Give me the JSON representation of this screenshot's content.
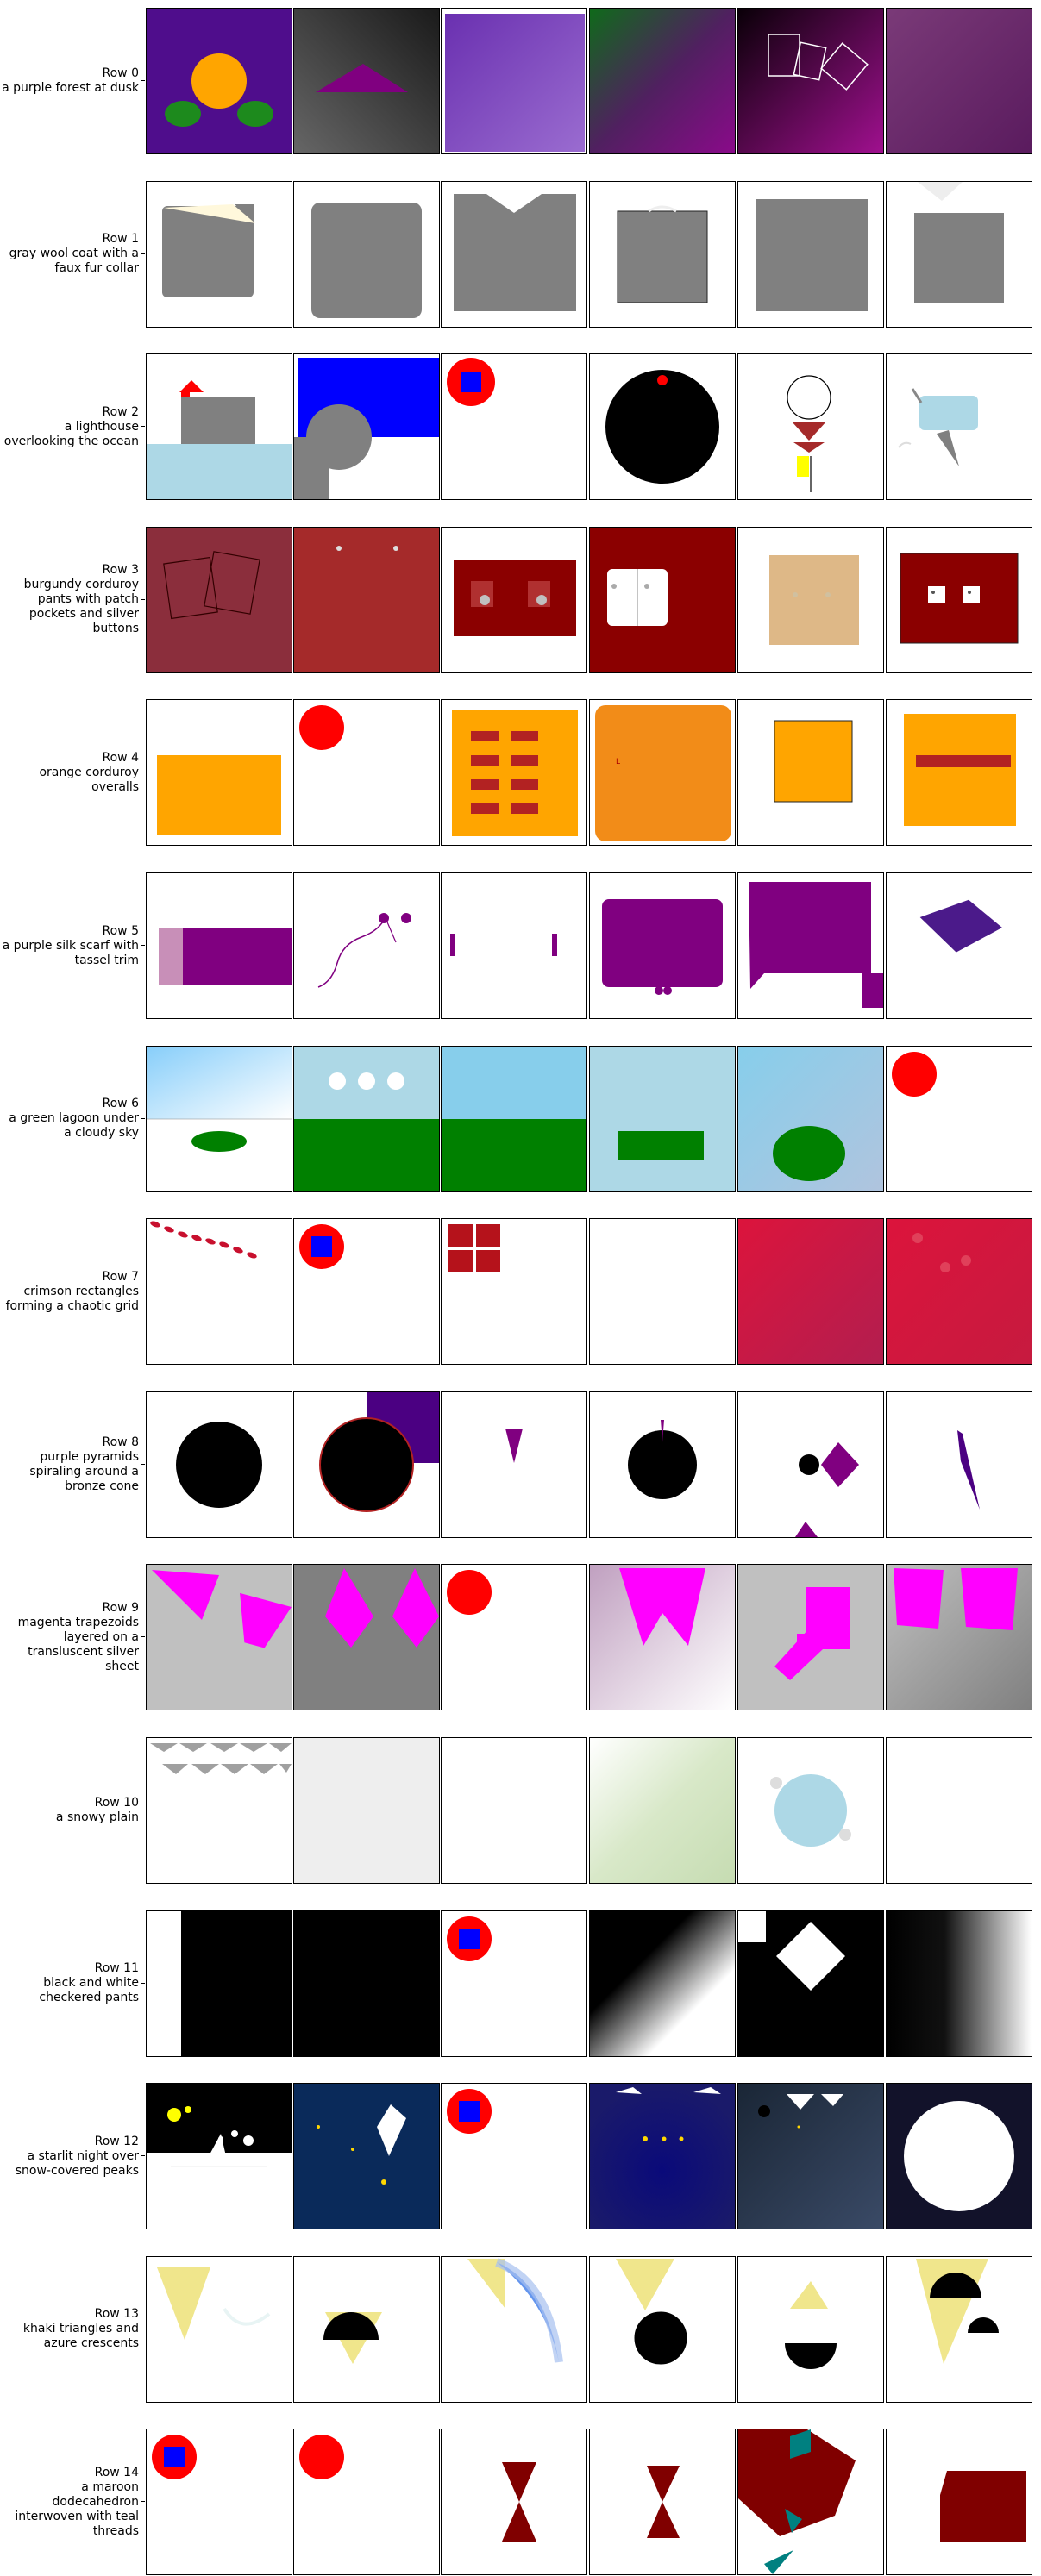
{
  "rows": [
    {
      "index_label": "Row 0",
      "prompt": "a purple forest at dusk"
    },
    {
      "index_label": "Row 1",
      "prompt": "gray wool coat with a faux fur collar"
    },
    {
      "index_label": "Row 2",
      "prompt": "a lighthouse overlooking the ocean"
    },
    {
      "index_label": "Row 3",
      "prompt": "burgundy corduroy pants with patch pockets and silver buttons"
    },
    {
      "index_label": "Row 4",
      "prompt": "orange corduroy overalls"
    },
    {
      "index_label": "Row 5",
      "prompt": "a purple silk scarf with tassel trim"
    },
    {
      "index_label": "Row 6",
      "prompt": "a green lagoon under a cloudy sky"
    },
    {
      "index_label": "Row 7",
      "prompt": "crimson rectangles forming a chaotic grid"
    },
    {
      "index_label": "Row 8",
      "prompt": "purple pyramids spiraling around a bronze cone"
    },
    {
      "index_label": "Row 9",
      "prompt": "magenta trapezoids layered on a transluscent silver sheet"
    },
    {
      "index_label": "Row 10",
      "prompt": "a snowy plain"
    },
    {
      "index_label": "Row 11",
      "prompt": "black and white checkered pants"
    },
    {
      "index_label": "Row 12",
      "prompt": "a starlit night over snow-covered peaks"
    },
    {
      "index_label": "Row 13",
      "prompt": "khaki triangles and azure crescents"
    },
    {
      "index_label": "Row 14",
      "prompt": "a maroon dodecahedron interwoven with teal threads"
    }
  ]
}
